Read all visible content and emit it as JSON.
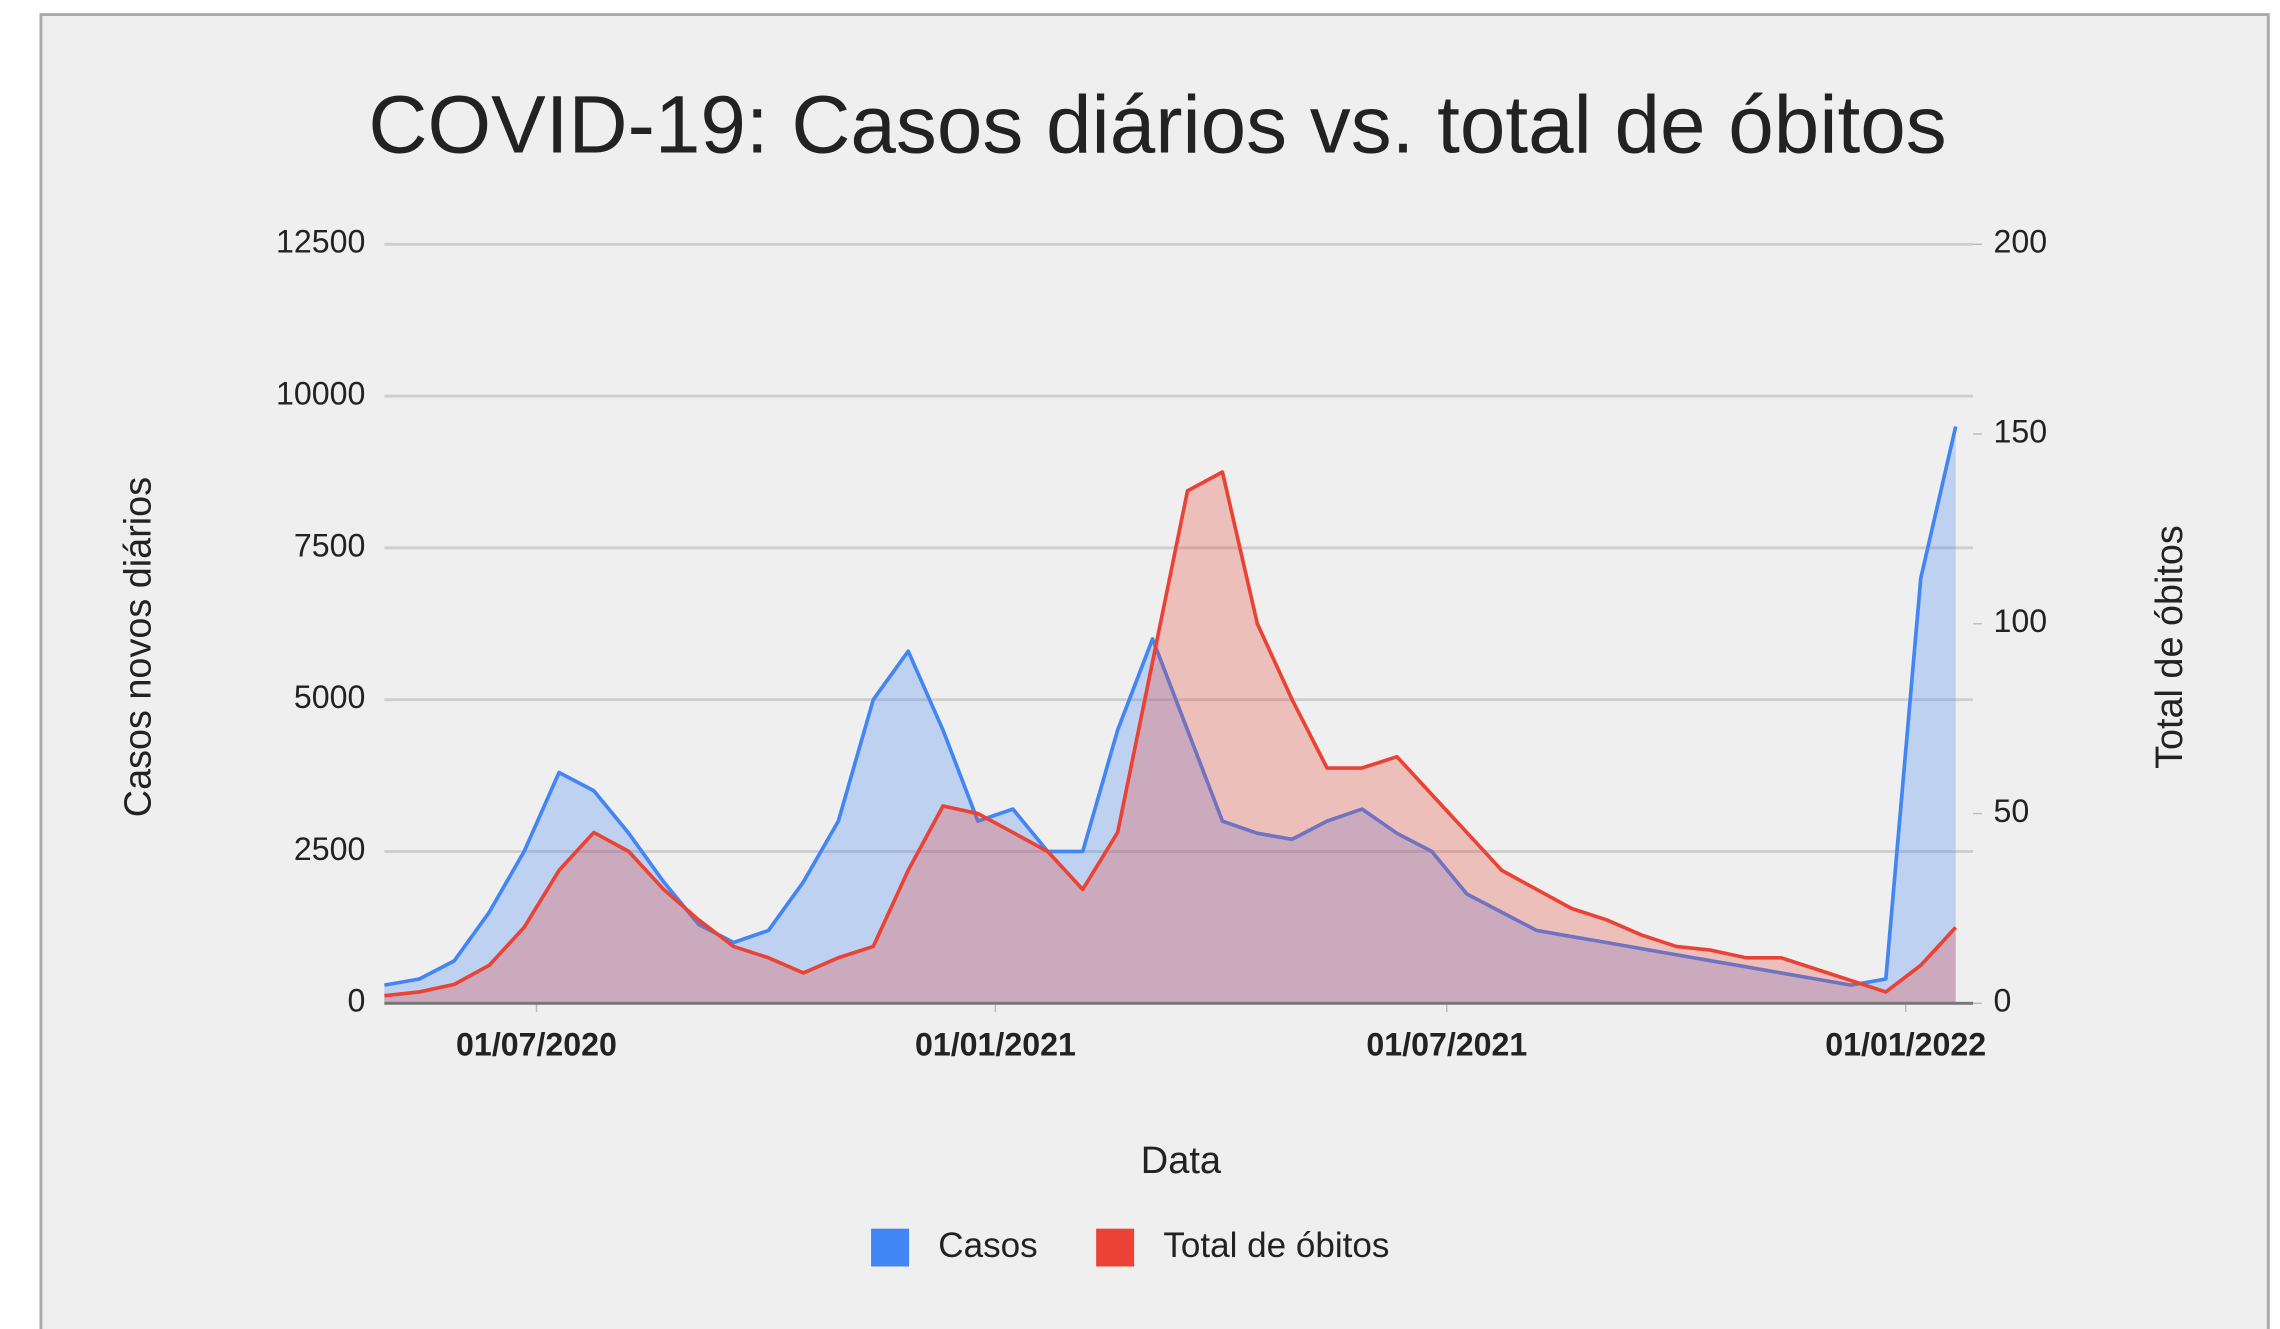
{
  "chart_data": {
    "type": "area",
    "title": "COVID-19: Casos diários vs. total de óbitos",
    "x_label": "Data",
    "y_label": "Casos novos diários",
    "y2_label": "Total de óbitos",
    "x": [
      "2020-05-01",
      "2020-05-15",
      "2020-05-29",
      "2020-06-12",
      "2020-06-26",
      "2020-07-10",
      "2020-07-24",
      "2020-08-07",
      "2020-08-21",
      "2020-09-04",
      "2020-09-18",
      "2020-10-02",
      "2020-10-16",
      "2020-10-30",
      "2020-11-13",
      "2020-11-27",
      "2020-12-11",
      "2020-12-25",
      "2021-01-08",
      "2021-01-22",
      "2021-02-05",
      "2021-02-19",
      "2021-03-05",
      "2021-03-19",
      "2021-04-02",
      "2021-04-16",
      "2021-04-30",
      "2021-05-14",
      "2021-05-28",
      "2021-06-11",
      "2021-06-25",
      "2021-07-09",
      "2021-07-23",
      "2021-08-06",
      "2021-08-20",
      "2021-09-03",
      "2021-09-17",
      "2021-10-01",
      "2021-10-15",
      "2021-10-29",
      "2021-11-12",
      "2021-11-26",
      "2021-12-10",
      "2021-12-24",
      "2022-01-07",
      "2022-01-21"
    ],
    "series": [
      {
        "name": "Casos",
        "color": "#4285f4",
        "axis": "y",
        "values": [
          300,
          400,
          700,
          1500,
          2500,
          3800,
          3500,
          2800,
          2000,
          1300,
          1000,
          1200,
          2000,
          3000,
          5000,
          5800,
          4500,
          3000,
          3200,
          2500,
          2500,
          4500,
          6000,
          4500,
          3000,
          2800,
          2700,
          3000,
          3200,
          2800,
          2500,
          1800,
          1500,
          1200,
          1100,
          1000,
          900,
          800,
          700,
          600,
          500,
          400,
          300,
          400,
          7000,
          9500
        ]
      },
      {
        "name": "Total de óbitos",
        "color": "#ea4335",
        "axis": "y2",
        "values": [
          2,
          3,
          5,
          10,
          20,
          35,
          45,
          40,
          30,
          22,
          15,
          12,
          8,
          12,
          15,
          35,
          52,
          50,
          45,
          40,
          30,
          45,
          90,
          135,
          140,
          100,
          80,
          62,
          62,
          65,
          55,
          45,
          35,
          30,
          25,
          22,
          18,
          15,
          14,
          12,
          12,
          9,
          6,
          3,
          10,
          20
        ]
      }
    ],
    "xlim": [
      "2020-05-01",
      "2022-01-28"
    ],
    "xticks": [
      {
        "value": "2020-07-01",
        "label": "01/07/2020"
      },
      {
        "value": "2021-01-01",
        "label": "01/01/2021"
      },
      {
        "value": "2021-07-01",
        "label": "01/07/2021"
      },
      {
        "value": "2022-01-01",
        "label": "01/01/2022"
      }
    ],
    "ylim": [
      0,
      12500
    ],
    "yticks": [
      0,
      2500,
      5000,
      7500,
      10000,
      12500
    ],
    "y2lim": [
      0,
      200
    ],
    "y2ticks": [
      0,
      50,
      100,
      150,
      200
    ],
    "grid": true,
    "legend": "bottom"
  }
}
